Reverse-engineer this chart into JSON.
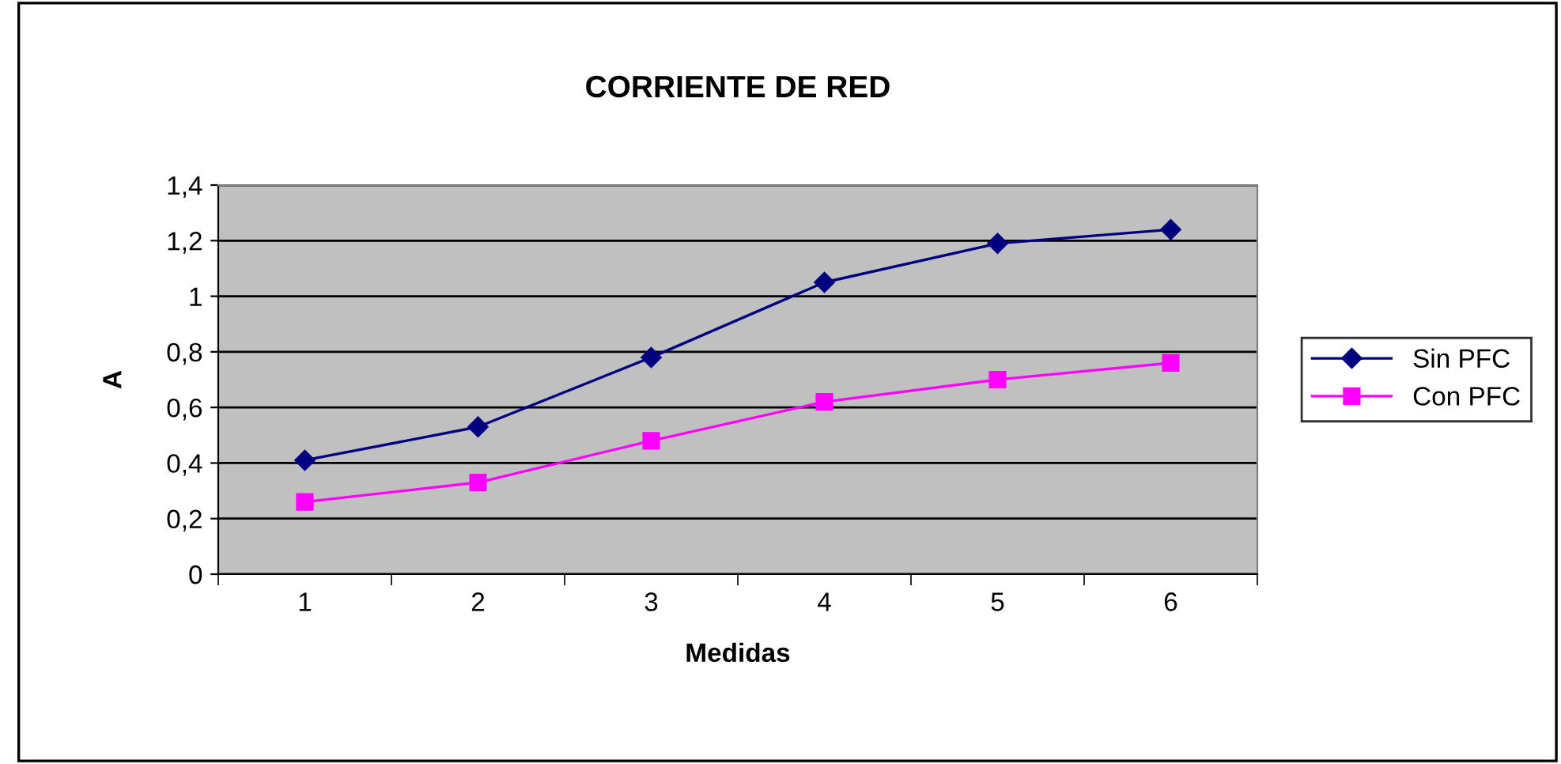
{
  "chart_data": {
    "type": "line",
    "title": "CORRIENTE DE RED",
    "xlabel": "Medidas",
    "ylabel": "A",
    "categories": [
      "1",
      "2",
      "3",
      "4",
      "5",
      "6"
    ],
    "series": [
      {
        "name": "Sin PFC",
        "color": "#000080",
        "marker": "diamond",
        "values": [
          0.41,
          0.53,
          0.78,
          1.05,
          1.19,
          1.24
        ]
      },
      {
        "name": "Con PFC",
        "color": "#ff00ff",
        "marker": "square",
        "values": [
          0.26,
          0.33,
          0.48,
          0.62,
          0.7,
          0.76
        ]
      }
    ],
    "ylim": [
      0,
      1.4
    ],
    "yticks": [
      0,
      {
        "value": 0.2,
        "label": "0,2"
      },
      {
        "value": 0.4,
        "label": "0,4"
      },
      {
        "value": 0.6,
        "label": "0,6"
      },
      {
        "value": 0.8,
        "label": "0,8"
      },
      1,
      {
        "value": 1.2,
        "label": "1,2"
      },
      {
        "value": 1.4,
        "label": "1,4"
      }
    ],
    "grid": "y",
    "legend": "right",
    "line_style": "solid"
  }
}
